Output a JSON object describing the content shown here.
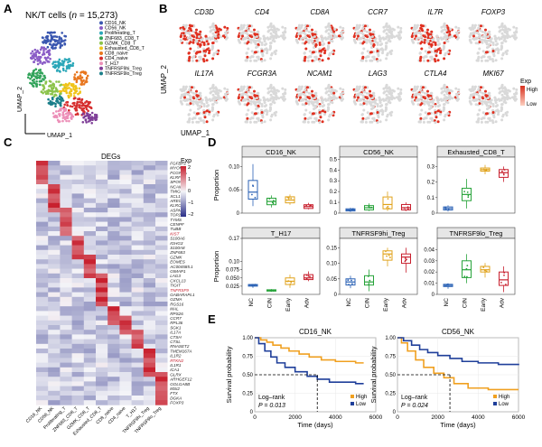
{
  "panels": {
    "a": "A",
    "b": "B",
    "c": "C",
    "d": "D",
    "e": "E"
  },
  "colors": {
    "nc": "#2b62b5",
    "cin": "#27a33a",
    "early": "#e0a21a",
    "adv": "#c8202e",
    "high": "#f0a020",
    "low": "#1f3f9a",
    "feat_high": "#e03020",
    "feat_low": "#d9d9d9",
    "umap_clusters": [
      "#3a57b0",
      "#8a5cc6",
      "#2aa7b8",
      "#31a35a",
      "#8bc34a",
      "#f0c419",
      "#e8771f",
      "#d62e2e",
      "#ec8fb8",
      "#7f3f98",
      "#1b7f8a",
      "#b8a020"
    ]
  },
  "umap": {
    "title": "NK/T cells (",
    "n_label": "n",
    "n_value": " = 15,273)",
    "xlabel": "UMAP_1",
    "ylabel": "UMAP_2",
    "legend": [
      "CD16_NK",
      "CD56_NK",
      "Proliferating_T",
      "ZNF683_CD8_T",
      "GZMK_CD8_T",
      "Exhausted_CD8_T",
      "CD8_naive",
      "CD4_naive",
      "T_H17",
      "TNFRSF9hi_Treg",
      "TNFRSF9lo_Treg"
    ]
  },
  "features": {
    "genes": [
      "CD3D",
      "CD4",
      "CD8A",
      "CCR7",
      "IL7R",
      "FOXP3",
      "IL17A",
      "FCGR3A",
      "NCAM1",
      "LAG3",
      "CTLA4",
      "MKI67"
    ],
    "ylabel": "UMAP_2",
    "xlabel": "UMAP_1",
    "scale_high": "High",
    "scale_low": "Low",
    "scale_title": "Exp"
  },
  "heatmap": {
    "title": "DEGs",
    "exp_title": "Exp",
    "ticks": [
      "2",
      "1",
      "0",
      "−1",
      "−2"
    ],
    "columns": [
      "CD16_NK",
      "CD56_NK",
      "Proliferating_T",
      "ZNF683_CD8_T",
      "GZMK_CD8_T",
      "Exhausted_CD8_T",
      "CD8_naive",
      "CD4_naive",
      "T_H17",
      "TNFRSF9hi_Treg",
      "TNFRSF9lo_Treg"
    ],
    "genes": [
      "FGFBP2",
      "MYOM2",
      "FCGR3A",
      "KLRF1",
      "SPON2",
      "NCAM1",
      "TMIGD2",
      "XCL1",
      "AREG",
      "KLRC1",
      "ASPM",
      "TOP2A",
      "TYMS",
      "CENPF",
      "TUBB",
      "KIST",
      "S100A6",
      "IGHG3",
      "S100A8",
      "ZNF683",
      "GZMK",
      "EOMES",
      "AC004585.1",
      "GIMAP1",
      "LAG3",
      "CXCL13",
      "TIGIT",
      "TNFRSF9",
      "GABARAPL1",
      "GZMA",
      "RGS16",
      "MAL",
      "RPS26",
      "CCR7",
      "RPL36",
      "SGK1",
      "IL17A",
      "CTSH",
      "CTSL",
      "RNASET2",
      "TMEM167A",
      "IL1R2",
      "RTKN2",
      "IL1R1",
      "ICA1",
      "GLRX",
      "ARHGEF12",
      "GOLGA8B",
      "MSI2",
      "FTX",
      "DGKA",
      "FOXP3"
    ],
    "red_genes": [
      "KIST",
      "TNFRSF9",
      "RTKN2"
    ]
  },
  "boxplots": {
    "ylabel": "Proportion",
    "groups": [
      "NC",
      "CIN",
      "Early",
      "Adv"
    ],
    "panels": [
      {
        "title": "CD16_NK",
        "ylim": [
          0,
          0.12
        ],
        "ticks": [
          "0.10",
          "0.05",
          "0"
        ],
        "tickvals": [
          0.1,
          0.05,
          0
        ],
        "stats": [
          [
            0.015,
            0.03,
            0.045,
            0.07,
            0.105
          ],
          [
            0.012,
            0.018,
            0.025,
            0.032,
            0.038
          ],
          [
            0.018,
            0.022,
            0.028,
            0.035,
            0.04
          ],
          [
            0.008,
            0.01,
            0.014,
            0.018,
            0.022
          ]
        ]
      },
      {
        "title": "CD56_NK",
        "ylim": [
          0,
          0.52
        ],
        "ticks": [
          "0.5",
          "0.4",
          "0.3",
          "0.2",
          "0.1",
          "0"
        ],
        "tickvals": [
          0.5,
          0.4,
          0.3,
          0.2,
          0.1,
          0
        ],
        "stats": [
          [
            0.01,
            0.02,
            0.03,
            0.04,
            0.05
          ],
          [
            0.02,
            0.03,
            0.05,
            0.07,
            0.09
          ],
          [
            0.02,
            0.04,
            0.08,
            0.15,
            0.2
          ],
          [
            0.02,
            0.03,
            0.05,
            0.08,
            0.1
          ]
        ]
      },
      {
        "title": "Exhausted_CD8_T",
        "ylim": [
          0,
          0.36
        ],
        "ticks": [
          "0.3",
          "0.2",
          "0.1",
          "0"
        ],
        "tickvals": [
          0.3,
          0.2,
          0.1,
          0
        ],
        "stats": [
          [
            0.01,
            0.02,
            0.03,
            0.04,
            0.05
          ],
          [
            0.03,
            0.08,
            0.12,
            0.16,
            0.22
          ],
          [
            0.25,
            0.27,
            0.28,
            0.29,
            0.31
          ],
          [
            0.2,
            0.23,
            0.26,
            0.28,
            0.3
          ]
        ]
      },
      {
        "title": "T_H17",
        "ylim": [
          0,
          0.17
        ],
        "ticks": [
          "0.17",
          "0.10",
          "0.075",
          "0.050",
          "0.025"
        ],
        "tickvals": [
          0.17,
          0.1,
          0.075,
          0.05,
          0.025
        ],
        "stats": [
          [
            0.02,
            0.025,
            0.028,
            0.03,
            0.032
          ],
          [
            0.008,
            0.01,
            0.012,
            0.014,
            0.016
          ],
          [
            0.02,
            0.03,
            0.04,
            0.05,
            0.06
          ],
          [
            0.04,
            0.045,
            0.05,
            0.06,
            0.07
          ]
        ]
      },
      {
        "title": "TNFRSF9hi_Treg",
        "ylim": [
          0,
          0.18
        ],
        "ticks": [
          "0.15",
          "0.10",
          "0.05",
          "0"
        ],
        "tickvals": [
          0.15,
          0.1,
          0.05,
          0
        ],
        "stats": [
          [
            0.02,
            0.03,
            0.04,
            0.05,
            0.06
          ],
          [
            0.01,
            0.03,
            0.04,
            0.06,
            0.08
          ],
          [
            0.09,
            0.11,
            0.13,
            0.14,
            0.15
          ],
          [
            0.07,
            0.1,
            0.12,
            0.13,
            0.15
          ]
        ]
      },
      {
        "title": "TNFRSF9lo_Treg",
        "ylim": [
          0,
          0.05
        ],
        "ticks": [
          "0.04",
          "0.03",
          "0.02",
          "0.01",
          "0"
        ],
        "tickvals": [
          0.04,
          0.03,
          0.02,
          0.01,
          0
        ],
        "stats": [
          [
            0.005,
            0.007,
            0.008,
            0.009,
            0.01
          ],
          [
            0.01,
            0.015,
            0.022,
            0.03,
            0.036
          ],
          [
            0.015,
            0.02,
            0.022,
            0.025,
            0.028
          ],
          [
            0.002,
            0.008,
            0.013,
            0.02,
            0.025
          ]
        ]
      }
    ]
  },
  "survival": {
    "ylabel": "Survival probability",
    "xlabel": "Time (days)",
    "xticks": [
      "0",
      "2000",
      "4000",
      "6000"
    ],
    "yticks": [
      "1.00",
      "0.75",
      "0.50",
      "0.25",
      "0"
    ],
    "legend_high": "High",
    "legend_low": "Low",
    "panels": [
      {
        "title": "CD16_NK",
        "logrank": "Log–rank",
        "pval": "P = 0.013",
        "median": 3100,
        "high": [
          [
            0,
            1
          ],
          [
            300,
            0.97
          ],
          [
            600,
            0.94
          ],
          [
            900,
            0.9
          ],
          [
            1300,
            0.86
          ],
          [
            1700,
            0.82
          ],
          [
            2200,
            0.78
          ],
          [
            2700,
            0.74
          ],
          [
            3300,
            0.7
          ],
          [
            4000,
            0.68
          ],
          [
            5000,
            0.66
          ]
        ],
        "low": [
          [
            0,
            1
          ],
          [
            200,
            0.92
          ],
          [
            500,
            0.82
          ],
          [
            800,
            0.74
          ],
          [
            1100,
            0.66
          ],
          [
            1500,
            0.6
          ],
          [
            2000,
            0.54
          ],
          [
            2600,
            0.48
          ],
          [
            3100,
            0.44
          ],
          [
            3700,
            0.4
          ],
          [
            5000,
            0.38
          ]
        ]
      },
      {
        "title": "CD56_NK",
        "logrank": "Log–rank",
        "pval": "P = 0.024",
        "median": 2600,
        "high": [
          [
            0,
            1
          ],
          [
            200,
            0.93
          ],
          [
            500,
            0.82
          ],
          [
            900,
            0.7
          ],
          [
            1300,
            0.6
          ],
          [
            1800,
            0.52
          ],
          [
            2300,
            0.46
          ],
          [
            2800,
            0.38
          ],
          [
            3500,
            0.32
          ],
          [
            4500,
            0.3
          ],
          [
            6000,
            0.3
          ]
        ],
        "low": [
          [
            0,
            1
          ],
          [
            300,
            0.96
          ],
          [
            700,
            0.9
          ],
          [
            1100,
            0.84
          ],
          [
            1500,
            0.8
          ],
          [
            2000,
            0.76
          ],
          [
            2600,
            0.72
          ],
          [
            3200,
            0.68
          ],
          [
            4000,
            0.66
          ],
          [
            5000,
            0.64
          ],
          [
            6000,
            0.63
          ]
        ]
      }
    ]
  }
}
